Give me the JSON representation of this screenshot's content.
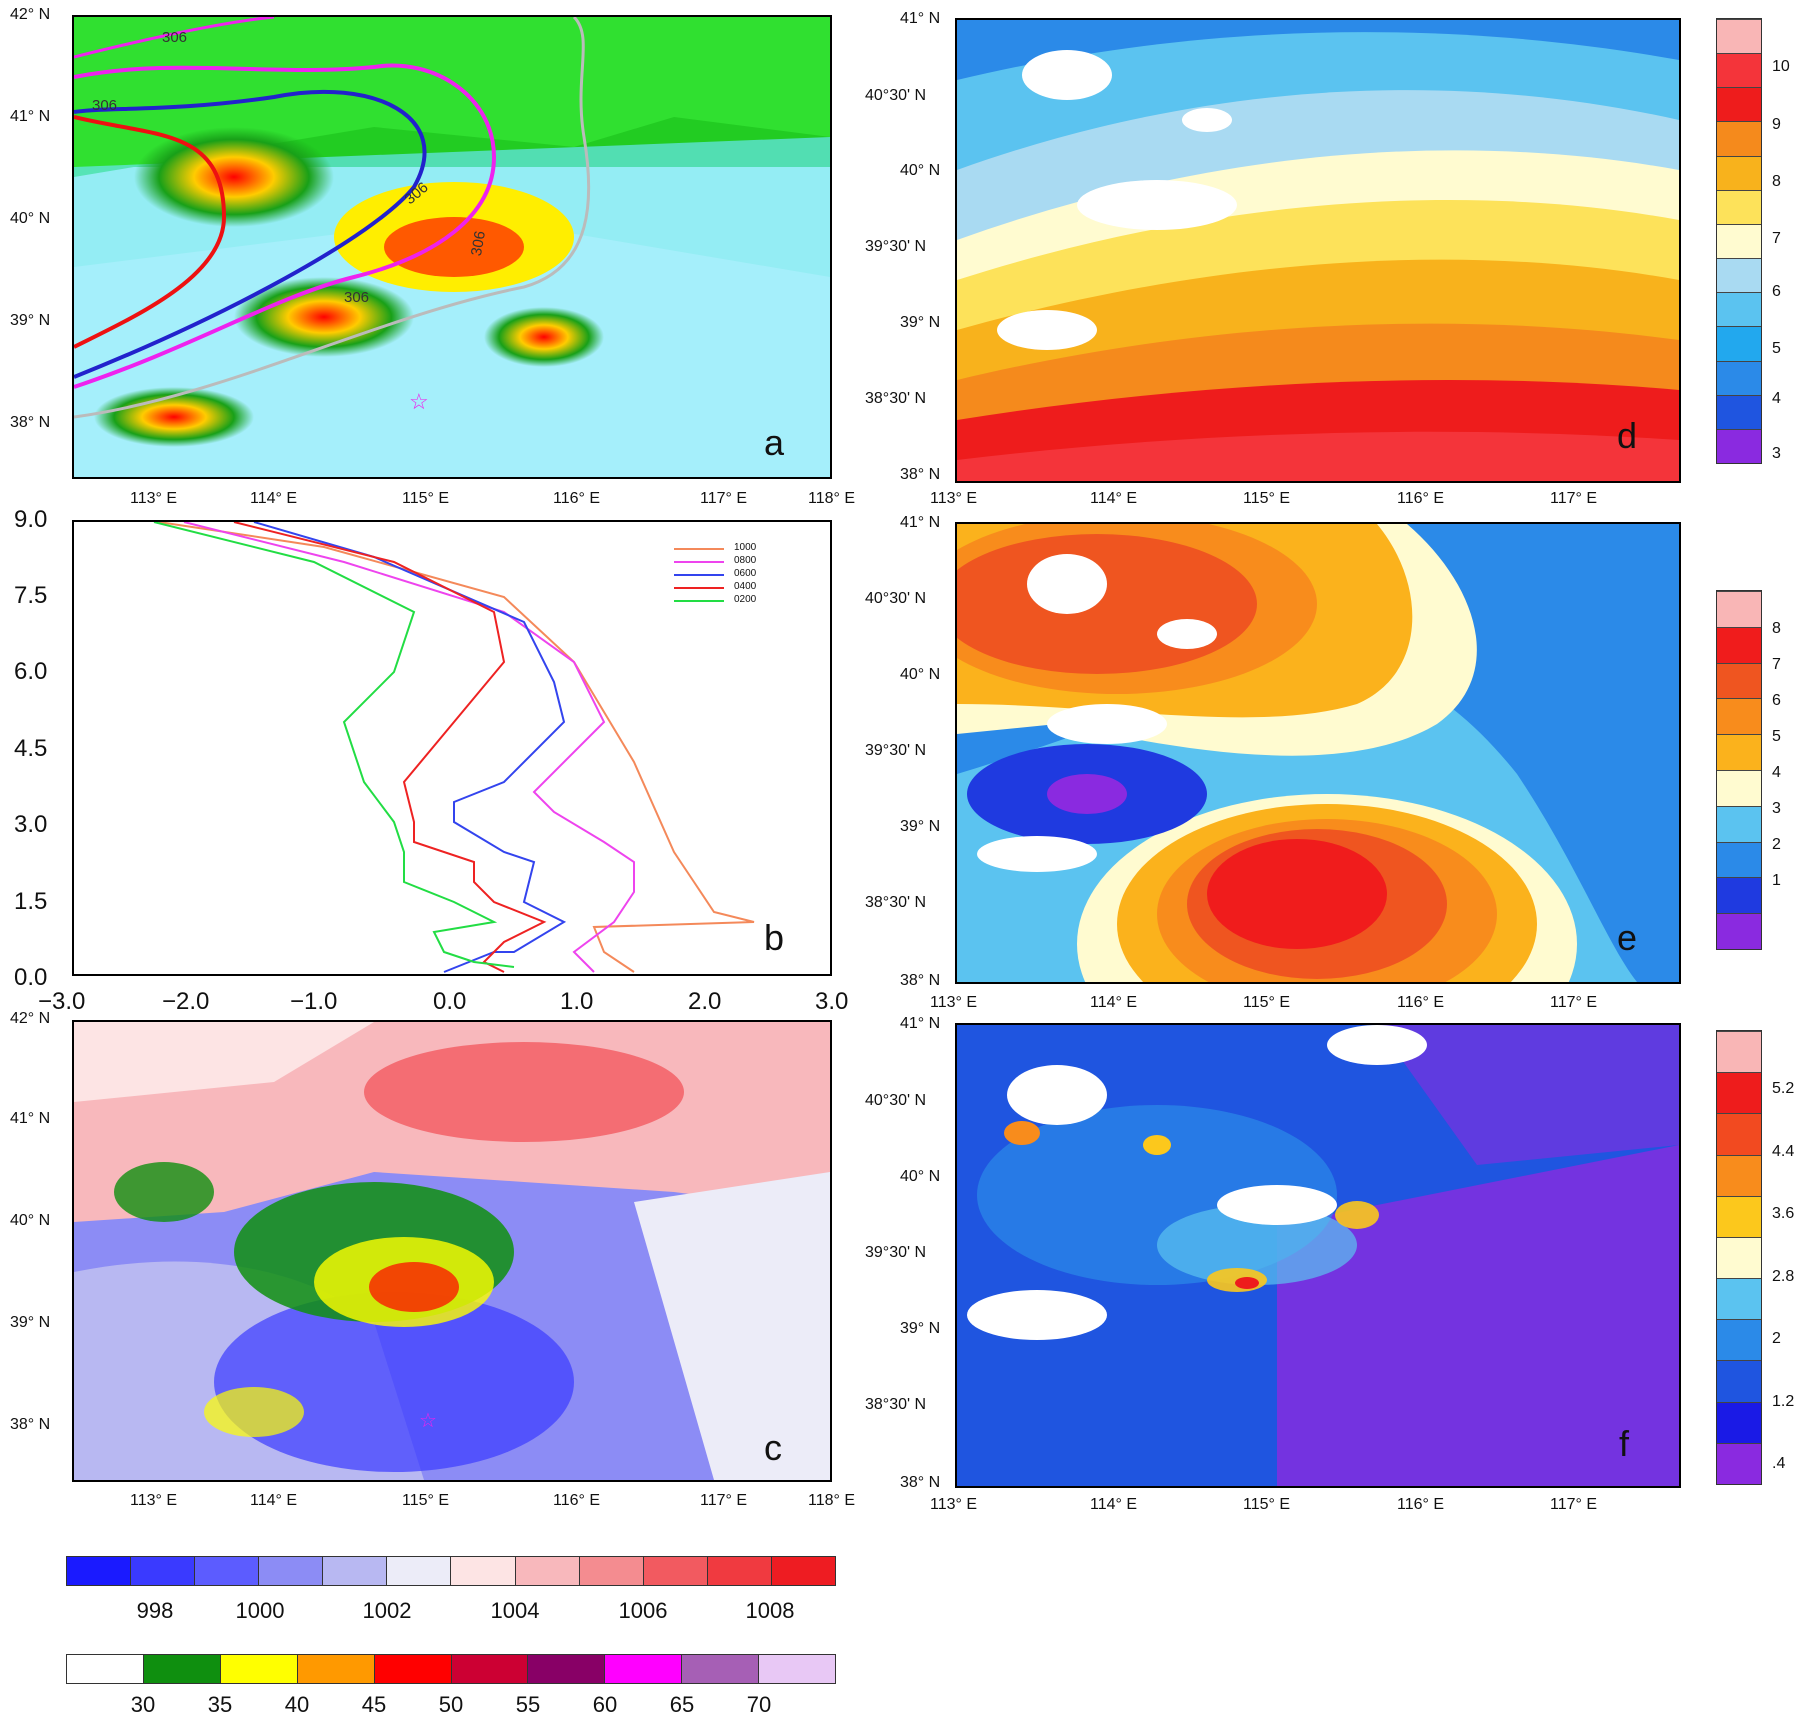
{
  "panel_a": {
    "letter": "a",
    "lat_labels": [
      "42° N",
      "41° N",
      "40° N",
      "39° N",
      "38° N"
    ],
    "lon_labels": [
      "113° E",
      "114° E",
      "115° E",
      "116° E",
      "117° E",
      "118° E"
    ],
    "contour_labels": [
      "306",
      "306",
      "306",
      "306",
      "306"
    ]
  },
  "panel_b": {
    "letter": "b",
    "legend": [
      {
        "name": "1000",
        "color": "#f4895a"
      },
      {
        "name": "0800",
        "color": "#ee44ee"
      },
      {
        "name": "0600",
        "color": "#3344ee"
      },
      {
        "name": "0400",
        "color": "#ee2222"
      },
      {
        "name": "0200",
        "color": "#22dd44"
      }
    ]
  },
  "panel_c": {
    "letter": "c",
    "lat_labels": [
      "42° N",
      "41° N",
      "40° N",
      "39° N",
      "38° N"
    ],
    "lon_labels": [
      "113° E",
      "114° E",
      "115° E",
      "116° E",
      "117° E",
      "118° E"
    ]
  },
  "panel_d": {
    "letter": "d",
    "lat_labels": [
      "41° N",
      "40°30' N",
      "40° N",
      "39°30' N",
      "39° N",
      "38°30' N",
      "38° N"
    ],
    "lon_labels": [
      "113° E",
      "114° E",
      "115° E",
      "116° E",
      "117° E"
    ],
    "colorbar_labels": [
      "10",
      "9",
      "8",
      "7",
      "6",
      "5",
      "4",
      "3"
    ]
  },
  "panel_e": {
    "letter": "e",
    "lat_labels": [
      "41° N",
      "40°30' N",
      "40° N",
      "39°30' N",
      "39° N",
      "38°30' N",
      "38° N"
    ],
    "lon_labels": [
      "113° E",
      "114° E",
      "115° E",
      "116° E",
      "117° E"
    ],
    "colorbar_labels": [
      "8",
      "7",
      "6",
      "5",
      "4",
      "3",
      "2",
      "1"
    ]
  },
  "panel_f": {
    "letter": "f",
    "lat_labels": [
      "41° N",
      "40°30' N",
      "40° N",
      "39°30' N",
      "39° N",
      "38°30' N",
      "38° N"
    ],
    "lon_labels": [
      "113° E",
      "114° E",
      "115° E",
      "116° E",
      "117° E"
    ],
    "colorbar_labels": [
      "5.2",
      "4.4",
      "3.6",
      "2.8",
      "2",
      "1.2",
      ".4"
    ]
  },
  "pressure_bar": {
    "labels": [
      "998",
      "1000",
      "1002",
      "1004",
      "1006",
      "1008"
    ],
    "colors": [
      "#1a1aff",
      "#3a3aff",
      "#5c5cff",
      "#8c8cf5",
      "#b8b8f2",
      "#ececf8",
      "#fde4e4",
      "#f8b8bc",
      "#f48c90",
      "#f25a60",
      "#f03a40",
      "#ee1c22"
    ]
  },
  "reflectivity_bar": {
    "labels": [
      "30",
      "35",
      "40",
      "45",
      "50",
      "55",
      "60",
      "65",
      "70"
    ],
    "colors": [
      "#ffffff",
      "#0f8f0f",
      "#ffff00",
      "#ff9900",
      "#ff0000",
      "#cc0033",
      "#880066",
      "#ff00ff",
      "#a65fb5",
      "#e8c8f5"
    ]
  },
  "colorbar_colors_d": [
    "#f9b6b6",
    "#f4343a",
    "#ee1c1c",
    "#f58a1c",
    "#f8b21c",
    "#fde25a",
    "#fffbd0",
    "#a9daf2",
    "#5bc3f0",
    "#22a8ee",
    "#2b8ae8",
    "#1f55e0",
    "#8a2ae0"
  ],
  "colorbar_colors_e": [
    "#f9b6b6",
    "#f01c1c",
    "#ef5520",
    "#f88c1c",
    "#fbb21c",
    "#fffbd0",
    "#5bc3f0",
    "#2b8ae8",
    "#1f3ae0",
    "#8a2ae0"
  ],
  "colorbar_colors_f": [
    "#f9b6b6",
    "#ee1c1c",
    "#f24a20",
    "#f88c1c",
    "#fcc81c",
    "#fffbd0",
    "#5bc3f0",
    "#2b8ae8",
    "#1f55e0",
    "#1a1ae6",
    "#8a2ae0"
  ]
}
